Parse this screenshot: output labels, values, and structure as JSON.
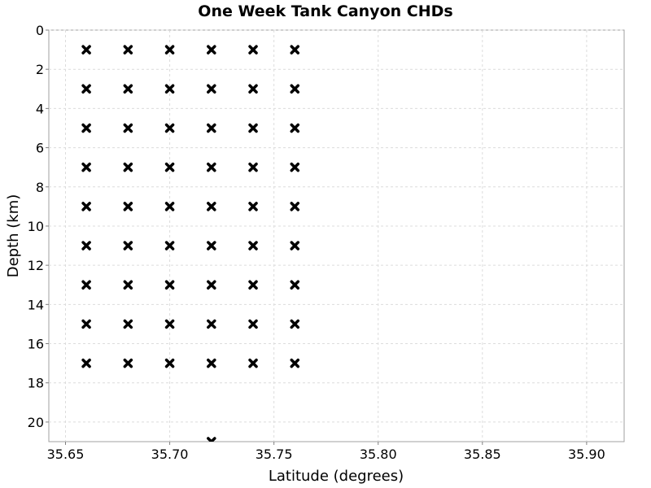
{
  "chart_data": {
    "type": "scatter",
    "title": "One Week Tank Canyon CHDs",
    "xlabel": "Latitude (degrees)",
    "ylabel": "Depth (km)",
    "xlim": [
      35.642,
      35.918
    ],
    "ylim": [
      0,
      21
    ],
    "y_inverted": true,
    "grid": true,
    "marker": "x-cross",
    "marker_color": "#000000",
    "x_ticks": [
      35.65,
      35.7,
      35.75,
      35.8,
      35.85,
      35.9
    ],
    "x_tick_labels": [
      "35.65",
      "35.70",
      "35.75",
      "35.80",
      "35.85",
      "35.90"
    ],
    "y_ticks": [
      0,
      2,
      4,
      6,
      8,
      10,
      12,
      14,
      16,
      18,
      20
    ],
    "y_tick_labels": [
      "0",
      "2",
      "4",
      "6",
      "8",
      "10",
      "12",
      "14",
      "16",
      "18",
      "20"
    ],
    "series": [
      {
        "points": [
          [
            35.66,
            1
          ],
          [
            35.68,
            1
          ],
          [
            35.7,
            1
          ],
          [
            35.72,
            1
          ],
          [
            35.74,
            1
          ],
          [
            35.76,
            1
          ],
          [
            35.66,
            3
          ],
          [
            35.68,
            3
          ],
          [
            35.7,
            3
          ],
          [
            35.72,
            3
          ],
          [
            35.74,
            3
          ],
          [
            35.76,
            3
          ],
          [
            35.66,
            5
          ],
          [
            35.68,
            5
          ],
          [
            35.7,
            5
          ],
          [
            35.72,
            5
          ],
          [
            35.74,
            5
          ],
          [
            35.76,
            5
          ],
          [
            35.66,
            7
          ],
          [
            35.68,
            7
          ],
          [
            35.7,
            7
          ],
          [
            35.72,
            7
          ],
          [
            35.74,
            7
          ],
          [
            35.76,
            7
          ],
          [
            35.66,
            9
          ],
          [
            35.68,
            9
          ],
          [
            35.7,
            9
          ],
          [
            35.72,
            9
          ],
          [
            35.74,
            9
          ],
          [
            35.76,
            9
          ],
          [
            35.66,
            11
          ],
          [
            35.68,
            11
          ],
          [
            35.7,
            11
          ],
          [
            35.72,
            11
          ],
          [
            35.74,
            11
          ],
          [
            35.76,
            11
          ],
          [
            35.66,
            13
          ],
          [
            35.68,
            13
          ],
          [
            35.7,
            13
          ],
          [
            35.72,
            13
          ],
          [
            35.74,
            13
          ],
          [
            35.76,
            13
          ],
          [
            35.66,
            15
          ],
          [
            35.68,
            15
          ],
          [
            35.7,
            15
          ],
          [
            35.72,
            15
          ],
          [
            35.74,
            15
          ],
          [
            35.76,
            15
          ],
          [
            35.66,
            17
          ],
          [
            35.68,
            17
          ],
          [
            35.7,
            17
          ],
          [
            35.72,
            17
          ],
          [
            35.74,
            17
          ],
          [
            35.76,
            17
          ],
          [
            35.72,
            21
          ]
        ]
      }
    ]
  }
}
